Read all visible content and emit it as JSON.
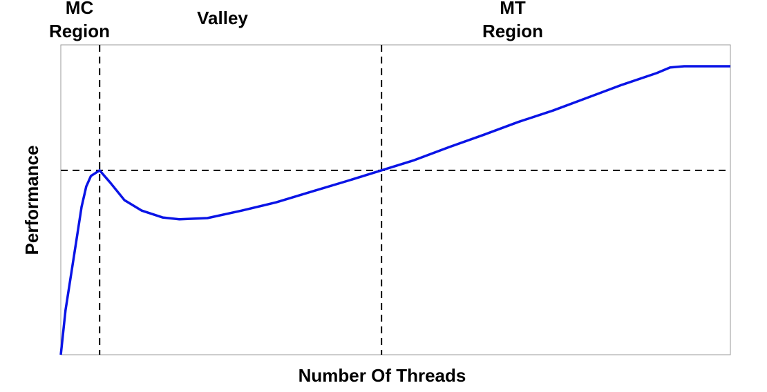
{
  "chart_data": {
    "type": "line",
    "xlabel": "Number Of Threads",
    "ylabel": "Performance",
    "xlim": [
      0,
      100
    ],
    "ylim": [
      0,
      100
    ],
    "x": [
      0,
      0.7,
      1.5,
      2.3,
      3.1,
      3.8,
      4.5,
      5.8,
      7.4,
      9.5,
      12.1,
      15.2,
      17.7,
      21.9,
      27.0,
      32.2,
      37.4,
      42.5,
      47.9,
      52.8,
      58.0,
      63.2,
      68.3,
      73.5,
      78.6,
      83.8,
      89.0,
      91.0,
      93.1,
      100
    ],
    "series": [
      {
        "color": "#0a14e6",
        "values": [
          0,
          14.3,
          25.4,
          36.5,
          47.7,
          54.3,
          57.7,
          59.5,
          55.5,
          49.9,
          46.5,
          44.3,
          43.7,
          44.1,
          46.5,
          49.2,
          52.6,
          55.9,
          59.5,
          62.8,
          67.0,
          71.0,
          75.1,
          78.8,
          82.9,
          87.1,
          90.9,
          92.7,
          93.1,
          93.1
        ]
      }
    ],
    "vlines": [
      5.8,
      47.9
    ],
    "hlines": [
      59.5
    ],
    "annotations": [
      [
        "MC",
        "Region"
      ],
      [
        "Valley"
      ],
      [
        "MT",
        "Region"
      ]
    ]
  }
}
